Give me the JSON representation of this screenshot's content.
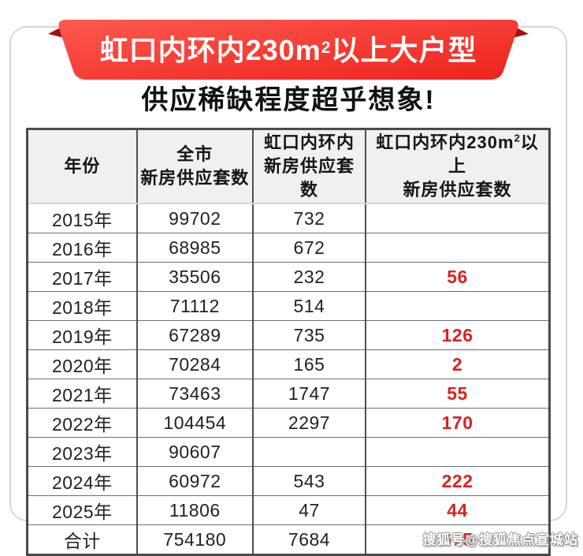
{
  "banner": {
    "title_pre": "虹口内环内230m",
    "title_sup": "2",
    "title_post": "以上大户型",
    "bg_color_light": "#fc5a50",
    "bg_color_dark": "#ee221c",
    "fold_color": "#a90d10"
  },
  "subtitle": "供应稀缺程度超乎想象!",
  "table": {
    "header": {
      "col1": "年份",
      "col2_line1": "全市",
      "col2_line2": "新房供应套数",
      "col3_line1": "虹口内环内",
      "col3_line2": "新房供应套数",
      "col4_line1_pre": "虹口内环内230m",
      "col4_line1_sup": "2",
      "col4_line1_post": "以上",
      "col4_line2": "新房供应套数"
    },
    "rows": [
      {
        "year": "2015年",
        "city": "99702",
        "hongkou": "732",
        "large": ""
      },
      {
        "year": "2016年",
        "city": "68985",
        "hongkou": "672",
        "large": ""
      },
      {
        "year": "2017年",
        "city": "35506",
        "hongkou": "232",
        "large": "56"
      },
      {
        "year": "2018年",
        "city": "71112",
        "hongkou": "514",
        "large": ""
      },
      {
        "year": "2019年",
        "city": "67289",
        "hongkou": "735",
        "large": "126"
      },
      {
        "year": "2020年",
        "city": "70284",
        "hongkou": "165",
        "large": "2"
      },
      {
        "year": "2021年",
        "city": "73463",
        "hongkou": "1747",
        "large": "55"
      },
      {
        "year": "2022年",
        "city": "104454",
        "hongkou": "2297",
        "large": "170"
      },
      {
        "year": "2023年",
        "city": "90607",
        "hongkou": "",
        "large": ""
      },
      {
        "year": "2024年",
        "city": "60972",
        "hongkou": "543",
        "large": "222"
      },
      {
        "year": "2025年",
        "city": "11806",
        "hongkou": "47",
        "large": "44"
      },
      {
        "year": "合计",
        "city": "754180",
        "hongkou": "7684",
        "large": "675"
      }
    ],
    "highlight_color": "#d8231f"
  },
  "watermark": "搜狐号@搜狐焦点宣城站",
  "chart_data": {
    "type": "table",
    "title": "虹口内环内230m²以上大户型 供应稀缺程度超乎想象!",
    "columns": [
      "年份",
      "全市新房供应套数",
      "虹口内环内新房供应套数",
      "虹口内环内230m²以上新房供应套数"
    ],
    "rows": [
      [
        "2015年",
        99702,
        732,
        null
      ],
      [
        "2016年",
        68985,
        672,
        null
      ],
      [
        "2017年",
        35506,
        232,
        56
      ],
      [
        "2018年",
        71112,
        514,
        null
      ],
      [
        "2019年",
        67289,
        735,
        126
      ],
      [
        "2020年",
        70284,
        165,
        2
      ],
      [
        "2021年",
        73463,
        1747,
        55
      ],
      [
        "2022年",
        104454,
        2297,
        170
      ],
      [
        "2023年",
        90607,
        null,
        null
      ],
      [
        "2024年",
        60972,
        543,
        222
      ],
      [
        "2025年",
        11806,
        47,
        44
      ],
      [
        "合计",
        754180,
        7684,
        675
      ]
    ],
    "highlight_column": "虹口内环内230m²以上新房供应套数",
    "highlight_color": "#d8231f"
  }
}
